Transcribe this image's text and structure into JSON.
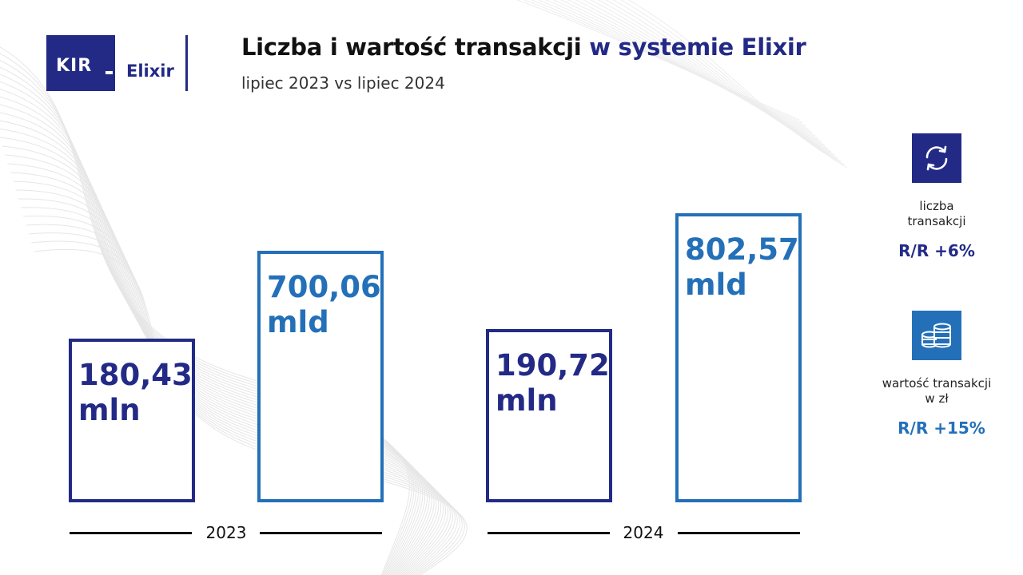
{
  "brand": {
    "logo_text": "KIR",
    "name": "Elixir"
  },
  "header": {
    "title_main": "Liczba i wartość transakcji",
    "title_accent": "w systemie Elixir",
    "subtitle": "lipiec 2023 vs lipiec 2024"
  },
  "colors": {
    "navy": "#232a86",
    "blue": "#2470b8",
    "text": "#111111"
  },
  "chart_data": {
    "type": "bar",
    "categories": [
      "2023",
      "2024"
    ],
    "series": [
      {
        "values": [
          180.43,
          190.72
        ],
        "labels": [
          "180,43 mln",
          "190,72 mln"
        ],
        "unit": "mln",
        "color": "#232a86"
      },
      {
        "values": [
          700.06,
          802.57
        ],
        "labels": [
          "700,06 mld",
          "802,57 mld"
        ],
        "unit": "mld",
        "color": "#2470b8"
      }
    ],
    "title": "Liczba i wartość transakcji w systemie Elixir",
    "xlabel": "",
    "ylabel": "",
    "grid": false,
    "legend": "none"
  },
  "bars": {
    "c2023": {
      "number": "180,43",
      "unit": "mln"
    },
    "v2023": {
      "number": "700,06",
      "unit": "mld"
    },
    "c2024": {
      "number": "190,72",
      "unit": "mln"
    },
    "v2024": {
      "number": "802,57",
      "unit": "mld"
    }
  },
  "years": [
    "2023",
    "2024"
  ],
  "kpis": [
    {
      "icon": "exchange-arrows-icon",
      "label_line1": "liczba",
      "label_line2": "transakcji",
      "value": "R/R +6%"
    },
    {
      "icon": "coin-stack-icon",
      "label_line1": "wartość transakcji",
      "label_line2": "w zł",
      "value": "R/R +15%"
    }
  ]
}
